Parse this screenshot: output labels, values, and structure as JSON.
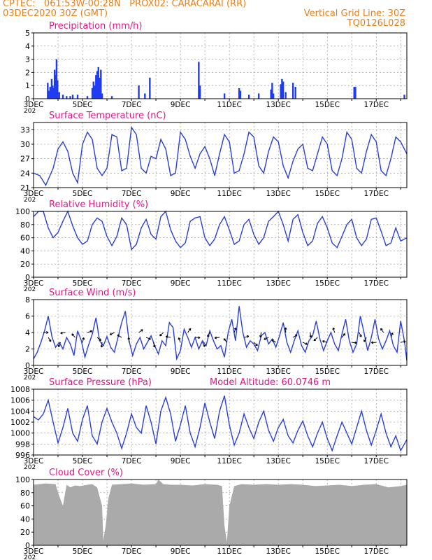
{
  "header": {
    "line1_left": "CPTEC:   061:53W-00:28N   PROX02: CARACARAI (RR)",
    "line2_left": "03DEC2020 30Z (GMT)",
    "line2_right": "Vertical Grid Line: 30Z",
    "line3_right": "TQ0126L028"
  },
  "colors": {
    "header": "#e8801a",
    "title": "#e0188c",
    "line": "#2a3fd8",
    "bar": "#1f3cf0",
    "cloud": "#aaaaaa"
  },
  "x_tick_labels": [
    "3DEC",
    "5DEC",
    "7DEC",
    "9DEC",
    "11DEC",
    "13DEC",
    "15DEC",
    "17DEC"
  ],
  "x_year_label": "202",
  "chart_data": [
    {
      "type": "bar",
      "title": "Precipitation (mm/h)",
      "ylim": [
        0,
        5
      ],
      "yticks": [
        0,
        1,
        2,
        3,
        4,
        5
      ],
      "x_day_range": [
        3,
        18.25
      ],
      "bars": [
        [
          3.58,
          1.2
        ],
        [
          3.62,
          0.6
        ],
        [
          3.68,
          0.9
        ],
        [
          3.74,
          1.5
        ],
        [
          3.78,
          1.0
        ],
        [
          3.82,
          0.8
        ],
        [
          3.86,
          2.2
        ],
        [
          3.9,
          1.8
        ],
        [
          3.94,
          3.0
        ],
        [
          3.98,
          1.4
        ],
        [
          4.05,
          0.5
        ],
        [
          4.2,
          0.3
        ],
        [
          4.35,
          0.2
        ],
        [
          4.5,
          0.2
        ],
        [
          4.6,
          0.3
        ],
        [
          4.8,
          0.3
        ],
        [
          5.2,
          0.2
        ],
        [
          5.4,
          0.8
        ],
        [
          5.45,
          1.3
        ],
        [
          5.5,
          1.0
        ],
        [
          5.55,
          1.8
        ],
        [
          5.6,
          2.1
        ],
        [
          5.65,
          2.4
        ],
        [
          5.7,
          1.6
        ],
        [
          5.75,
          2.2
        ],
        [
          5.8,
          0.4
        ],
        [
          6.2,
          0.2
        ],
        [
          7.3,
          1.0
        ],
        [
          7.55,
          0.4
        ],
        [
          7.75,
          1.6
        ],
        [
          9.75,
          2.8
        ],
        [
          9.8,
          1.0
        ],
        [
          10.8,
          0.4
        ],
        [
          11.4,
          0.8
        ],
        [
          11.45,
          0.6
        ],
        [
          11.8,
          0.3
        ],
        [
          12.2,
          0.4
        ],
        [
          12.7,
          0.7
        ],
        [
          12.75,
          1.2
        ],
        [
          12.8,
          0.4
        ],
        [
          13.1,
          1.1
        ],
        [
          13.15,
          1.5
        ],
        [
          13.2,
          1.3
        ],
        [
          13.3,
          0.5
        ],
        [
          13.6,
          1.2
        ],
        [
          13.7,
          0.9
        ],
        [
          16.1,
          0.9
        ],
        [
          16.15,
          0.9
        ],
        [
          18.15,
          0.3
        ]
      ]
    },
    {
      "type": "line",
      "title": "Surface Temperature (nC)",
      "ylim": [
        21,
        34.5
      ],
      "yticks": [
        21,
        24,
        27,
        30,
        33
      ],
      "x_day_range": [
        3,
        18.25
      ],
      "series": [
        {
          "x": [
            3,
            3.25,
            3.5,
            3.8,
            4.0,
            4.2,
            4.4,
            4.6,
            4.8,
            5.0,
            5.2,
            5.4,
            5.6,
            5.8,
            6.0,
            6.2,
            6.4,
            6.6,
            6.8,
            7.0,
            7.2,
            7.4,
            7.6,
            7.8,
            8.0,
            8.2,
            8.4,
            8.6,
            8.8,
            9.0,
            9.2,
            9.4,
            9.6,
            9.8,
            10.0,
            10.2,
            10.4,
            10.6,
            10.8,
            11.0,
            11.2,
            11.4,
            11.6,
            11.8,
            12.0,
            12.2,
            12.4,
            12.6,
            12.8,
            13.0,
            13.2,
            13.4,
            13.6,
            13.8,
            14.0,
            14.2,
            14.4,
            14.6,
            14.8,
            15.0,
            15.2,
            15.4,
            15.6,
            15.8,
            16.0,
            16.2,
            16.4,
            16.6,
            16.8,
            17.0,
            17.2,
            17.4,
            17.6,
            17.8,
            18.0,
            18.25
          ],
          "y": [
            24,
            23.5,
            21.5,
            25,
            29,
            30.5,
            28.5,
            24,
            22,
            30,
            32.5,
            31,
            25,
            23.5,
            25,
            32,
            31.5,
            24.5,
            25,
            33.5,
            32,
            25,
            24,
            27.5,
            27,
            31,
            29,
            23.5,
            24,
            32.5,
            31,
            27.5,
            25,
            28,
            29.5,
            27,
            23.5,
            28,
            32,
            30.5,
            24,
            24.5,
            28,
            32.5,
            31.5,
            25.5,
            24,
            28.5,
            31.5,
            30.5,
            25.5,
            23,
            26.5,
            29,
            30,
            25,
            24.5,
            28,
            31.5,
            30,
            24.5,
            23.5,
            27,
            32.5,
            31,
            25,
            24,
            28.5,
            32,
            30.5,
            24.5,
            23.5,
            27,
            31.5,
            30.5,
            28
          ]
        }
      ]
    },
    {
      "type": "line",
      "title": "Relative Humidity (%)",
      "ylim": [
        0,
        100
      ],
      "yticks": [
        0,
        20,
        40,
        60,
        80,
        100
      ],
      "x_day_range": [
        3,
        18.25
      ],
      "series": [
        {
          "x": [
            3,
            3.2,
            3.4,
            3.6,
            3.8,
            4.0,
            4.2,
            4.4,
            4.6,
            4.8,
            5.0,
            5.2,
            5.4,
            5.6,
            5.8,
            6.0,
            6.2,
            6.4,
            6.6,
            6.8,
            7.0,
            7.2,
            7.4,
            7.6,
            7.8,
            8.0,
            8.2,
            8.4,
            8.6,
            8.8,
            9.0,
            9.2,
            9.4,
            9.6,
            9.8,
            10.0,
            10.2,
            10.4,
            10.6,
            10.8,
            11.0,
            11.2,
            11.4,
            11.6,
            11.8,
            12.0,
            12.2,
            12.4,
            12.6,
            12.8,
            13.0,
            13.2,
            13.4,
            13.6,
            13.8,
            14.0,
            14.2,
            14.4,
            14.6,
            14.8,
            15.0,
            15.2,
            15.4,
            15.6,
            15.8,
            16.0,
            16.2,
            16.4,
            16.6,
            16.8,
            17.0,
            17.2,
            17.4,
            17.6,
            17.8,
            18.0,
            18.25
          ],
          "y": [
            92,
            100,
            100,
            75,
            60,
            68,
            85,
            100,
            78,
            60,
            50,
            55,
            80,
            90,
            85,
            62,
            48,
            62,
            90,
            80,
            42,
            50,
            75,
            88,
            65,
            58,
            92,
            100,
            72,
            55,
            45,
            52,
            85,
            90,
            92,
            60,
            48,
            58,
            80,
            92,
            72,
            50,
            55,
            80,
            88,
            65,
            50,
            60,
            85,
            92,
            100,
            80,
            55,
            88,
            95,
            68,
            48,
            55,
            82,
            92,
            75,
            52,
            45,
            62,
            80,
            88,
            60,
            48,
            58,
            88,
            90,
            70,
            48,
            52,
            75,
            55,
            60
          ]
        }
      ]
    },
    {
      "type": "line",
      "title": "Surface Wind (m/s)",
      "ylim": [
        0,
        8
      ],
      "yticks": [
        0,
        2,
        4,
        6,
        8
      ],
      "x_day_range": [
        3,
        18.25
      ],
      "series": [
        {
          "x": [
            3,
            3.15,
            3.3,
            3.45,
            3.6,
            3.75,
            3.9,
            4.05,
            4.2,
            4.35,
            4.5,
            4.65,
            4.8,
            4.95,
            5.1,
            5.25,
            5.4,
            5.55,
            5.7,
            5.85,
            6.0,
            6.15,
            6.3,
            6.45,
            6.6,
            6.75,
            6.9,
            7.05,
            7.2,
            7.35,
            7.5,
            7.65,
            7.8,
            7.95,
            8.1,
            8.25,
            8.4,
            8.55,
            8.7,
            8.85,
            9.0,
            9.15,
            9.3,
            9.45,
            9.6,
            9.75,
            9.9,
            10.05,
            10.2,
            10.35,
            10.5,
            10.65,
            10.8,
            10.95,
            11.1,
            11.25,
            11.4,
            11.55,
            11.7,
            11.85,
            12.0,
            12.15,
            12.3,
            12.45,
            12.6,
            12.75,
            12.9,
            13.05,
            13.2,
            13.35,
            13.5,
            13.65,
            13.8,
            13.95,
            14.1,
            14.25,
            14.4,
            14.55,
            14.7,
            14.85,
            15.0,
            15.15,
            15.3,
            15.45,
            15.6,
            15.75,
            15.9,
            16.05,
            16.2,
            16.35,
            16.5,
            16.65,
            16.8,
            16.95,
            17.1,
            17.25,
            17.4,
            17.55,
            17.7,
            17.85,
            18.0,
            18.15,
            18.25
          ],
          "y": [
            0.8,
            1.6,
            2.8,
            4.2,
            6.0,
            3.5,
            2.2,
            2.8,
            2.0,
            3.4,
            2.6,
            1.2,
            4.2,
            3.0,
            1.0,
            2.5,
            3.8,
            5.8,
            3.0,
            2.4,
            3.5,
            2.2,
            1.6,
            3.4,
            5.2,
            6.6,
            3.0,
            1.2,
            2.6,
            3.4,
            2.0,
            2.8,
            3.6,
            2.4,
            1.4,
            3.0,
            2.4,
            5.2,
            4.6,
            0.8,
            1.8,
            4.4,
            3.4,
            2.2,
            3.4,
            2.0,
            3.0,
            2.4,
            4.2,
            3.0,
            2.0,
            2.4,
            1.0,
            4.0,
            5.6,
            3.0,
            7.2,
            4.0,
            2.2,
            3.0,
            2.6,
            1.8,
            3.6,
            4.0,
            2.6,
            3.2,
            2.2,
            3.6,
            5.2,
            2.8,
            1.6,
            3.0,
            4.2,
            2.4,
            1.6,
            3.0,
            3.6,
            5.4,
            3.2,
            1.8,
            3.0,
            4.0,
            2.6,
            1.8,
            3.8,
            5.6,
            3.0,
            1.6,
            2.6,
            6.0,
            4.0,
            1.8,
            3.4,
            5.6,
            3.2,
            2.0,
            3.0,
            4.2,
            2.4,
            1.6,
            5.4,
            3.0,
            0.6
          ]
        }
      ],
      "arrow_x": [
        3.4,
        3.6,
        4.1,
        4.3,
        4.7,
        5.0,
        5.2,
        5.6,
        5.8,
        6.3,
        6.6,
        6.9,
        7.3,
        7.6,
        7.9,
        8.3,
        8.6,
        9.0,
        9.3,
        9.6,
        9.9,
        10.2,
        10.6,
        10.9,
        11.2,
        11.6,
        12.0,
        12.3,
        12.6,
        12.9,
        13.3,
        13.6,
        14.0,
        14.3,
        14.6,
        15.0,
        15.3,
        15.6,
        16.0,
        16.3,
        16.6,
        17.0,
        17.3,
        17.6,
        18.0
      ]
    },
    {
      "type": "line",
      "title": "Surface Pressure (hPa)",
      "annotation": "Model Altitude: 60.0746 m",
      "ylim": [
        996,
        1008
      ],
      "yticks": [
        996,
        998,
        1000,
        1002,
        1004,
        1006,
        1008
      ],
      "x_day_range": [
        3,
        18.25
      ],
      "series": [
        {
          "x": [
            3,
            3.2,
            3.4,
            3.6,
            3.8,
            4.0,
            4.2,
            4.4,
            4.6,
            4.8,
            5.0,
            5.2,
            5.4,
            5.6,
            5.8,
            6.0,
            6.2,
            6.4,
            6.6,
            6.8,
            7.0,
            7.2,
            7.4,
            7.6,
            7.8,
            8.0,
            8.2,
            8.4,
            8.6,
            8.8,
            9.0,
            9.2,
            9.4,
            9.6,
            9.8,
            10.0,
            10.2,
            10.4,
            10.6,
            10.8,
            11.0,
            11.2,
            11.4,
            11.6,
            11.8,
            12.0,
            12.2,
            12.4,
            12.6,
            12.8,
            13.0,
            13.2,
            13.4,
            13.6,
            13.8,
            14.0,
            14.2,
            14.4,
            14.6,
            14.8,
            15.0,
            15.2,
            15.4,
            15.6,
            15.8,
            16.0,
            16.2,
            16.4,
            16.6,
            16.8,
            17.0,
            17.2,
            17.4,
            17.6,
            17.8,
            18.0,
            18.25
          ],
          "y": [
            1003,
            1002.4,
            1003.5,
            1006,
            1002,
            998.2,
            1001,
            1004.5,
            1000,
            998.5,
            1002.5,
            1005,
            999.5,
            998,
            1002,
            1004.5,
            1002,
            1000,
            997.2,
            1000,
            1003.5,
            1001,
            1000,
            1005,
            1002,
            998,
            1004,
            1006.5,
            1003.5,
            998.5,
            1001.5,
            1005,
            1000,
            997.5,
            1001,
            1005.5,
            1002,
            999,
            1004,
            1006.8,
            1001.5,
            997.8,
            1000,
            1003.5,
            1001,
            999,
            1002,
            1004,
            1000.5,
            998.5,
            1001,
            1002.5,
            999.5,
            998.2,
            1000.5,
            1002.2,
            999.5,
            997.5,
            1000,
            1002,
            999,
            996.8,
            999.5,
            1002,
            1000,
            998,
            1001,
            1004,
            1000.5,
            997.8,
            1000.5,
            1003.5,
            1000,
            997.5,
            999.5,
            996.8,
            998.8
          ]
        }
      ]
    },
    {
      "type": "area",
      "title": "Cloud Cover (%)",
      "ylim": [
        0,
        100
      ],
      "yticks": [
        0,
        20,
        40,
        60,
        80,
        100
      ],
      "x_day_range": [
        3,
        18.25
      ],
      "series": [
        {
          "x": [
            3,
            3.5,
            3.9,
            4.0,
            4.2,
            4.35,
            4.5,
            4.7,
            4.9,
            5.2,
            5.4,
            5.6,
            5.8,
            5.85,
            5.95,
            6.05,
            6.2,
            6.6,
            7.0,
            7.5,
            8.0,
            8.1,
            8.3,
            8.6,
            9.0,
            9.5,
            10.0,
            10.5,
            10.7,
            10.8,
            10.9,
            11.0,
            11.2,
            11.5,
            12.0,
            12.5,
            13.0,
            13.5,
            14.0,
            14.5,
            15.0,
            15.5,
            16.0,
            16.5,
            17.0,
            17.5,
            18.0,
            18.25
          ],
          "y": [
            92,
            94,
            93,
            80,
            60,
            92,
            88,
            91,
            90,
            92,
            93,
            88,
            60,
            8,
            30,
            70,
            92,
            93,
            94,
            92,
            93,
            100,
            93,
            92,
            92,
            91,
            93,
            92,
            90,
            30,
            5,
            60,
            90,
            93,
            92,
            93,
            92,
            93,
            92,
            90,
            91,
            92,
            90,
            92,
            93,
            88,
            90,
            92
          ]
        }
      ]
    }
  ]
}
